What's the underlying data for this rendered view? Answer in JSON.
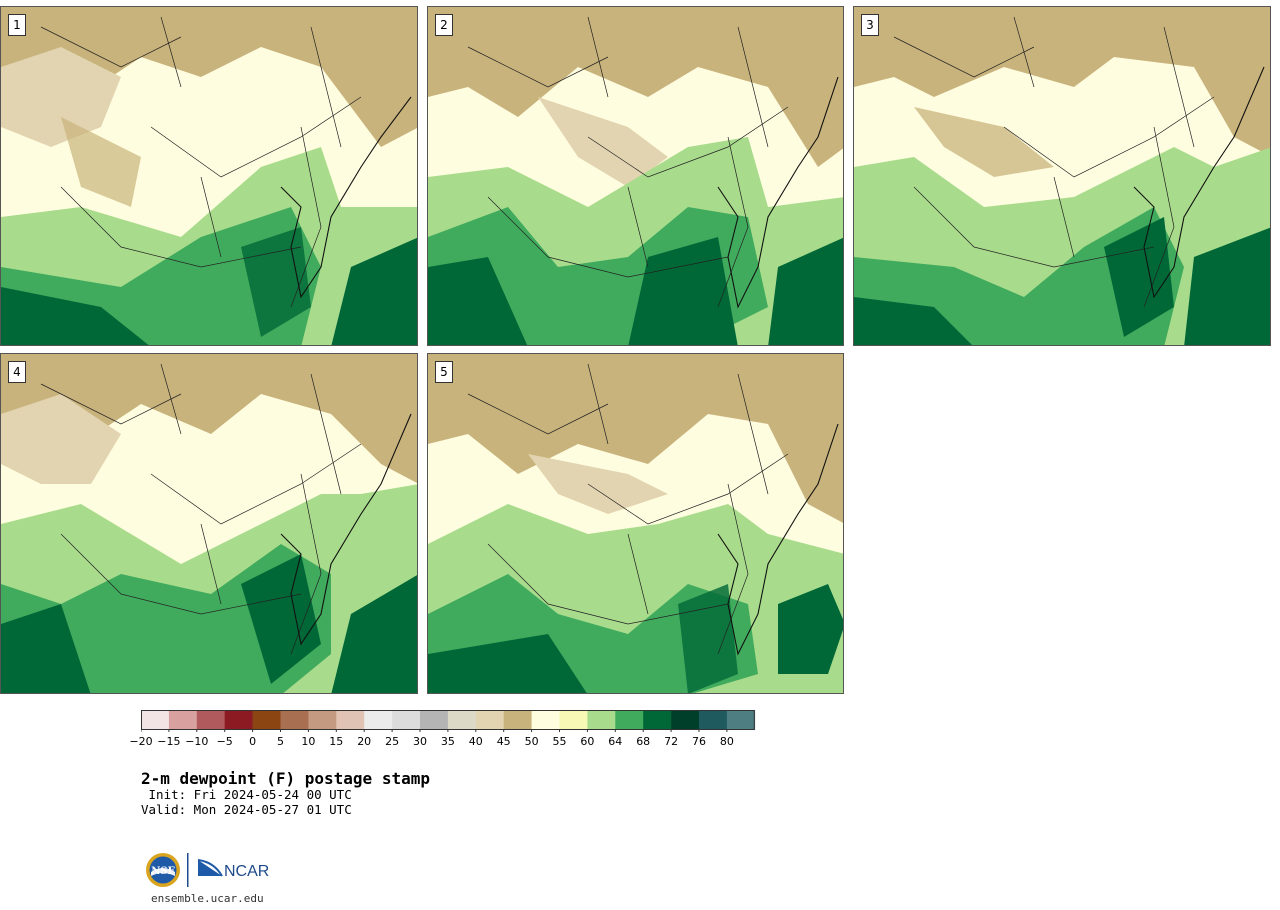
{
  "panels": [
    {
      "label": "1"
    },
    {
      "label": "2"
    },
    {
      "label": "3"
    },
    {
      "label": "4"
    },
    {
      "label": "5"
    }
  ],
  "colorbar": {
    "tick_labels": [
      "−20",
      "−15",
      "−10",
      "−5",
      "0",
      "5",
      "10",
      "15",
      "20",
      "25",
      "30",
      "35",
      "40",
      "45",
      "50",
      "55",
      "60",
      "64",
      "68",
      "72",
      "76",
      "80"
    ],
    "colors": [
      "#f2e4e4",
      "#d9a0a0",
      "#b05a5e",
      "#8b1a22",
      "#8b4513",
      "#a86f50",
      "#c49a80",
      "#e0c3b4",
      "#ececec",
      "#dcdcdc",
      "#b4b4b4",
      "#dcd9c6",
      "#e2d4b0",
      "#c9b37c",
      "#fffde0",
      "#f7f9b4",
      "#a8dc8c",
      "#41ab5d",
      "#006837",
      "#00402a",
      "#1f5a5e",
      "#4e7d82"
    ]
  },
  "title": "2-m dewpoint (F) postage stamp",
  "init": " Init: Fri 2024-05-24 00 UTC",
  "valid": "Valid: Mon 2024-05-27 01 UTC",
  "logo": {
    "nsf": "NSF",
    "ncar": "NCAR"
  },
  "footer": "ensemble.ucar.edu"
}
